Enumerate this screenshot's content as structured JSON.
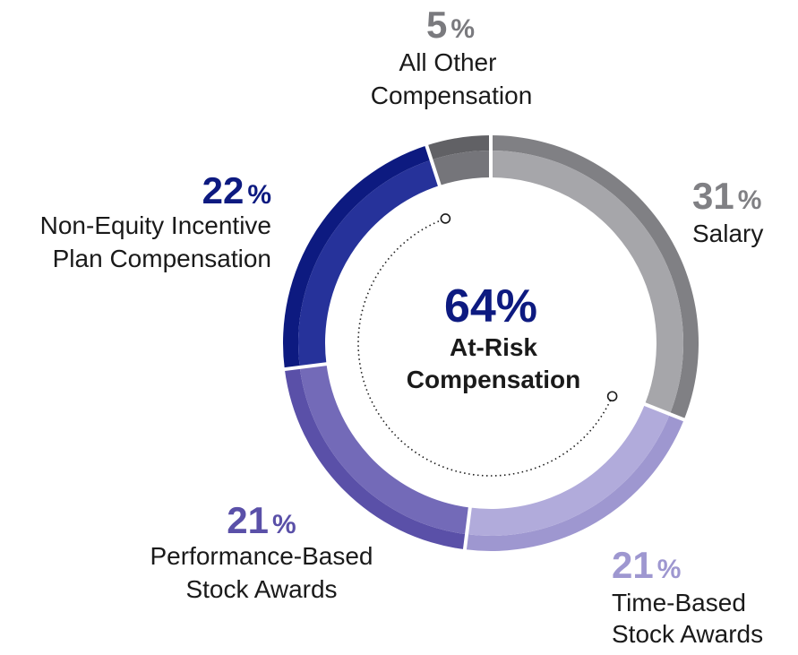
{
  "chart_data": {
    "type": "pie",
    "variant": "donut",
    "segments": [
      {
        "name": "Salary",
        "value": 31,
        "pct_text": "31",
        "pct_symbol": "%",
        "label_lines": [
          "Salary"
        ],
        "color_outer": "#808084",
        "color_inner": "#a6a6aa",
        "label_color": "#808084"
      },
      {
        "name": "Time-Based Stock Awards",
        "value": 21,
        "pct_text": "21",
        "pct_symbol": "%",
        "label_lines": [
          "Time-Based",
          "Stock Awards"
        ],
        "color_outer": "#9e97d0",
        "color_inner": "#b1abdb",
        "label_color": "#9e97d0"
      },
      {
        "name": "Performance-Based Stock Awards",
        "value": 21,
        "pct_text": "21",
        "pct_symbol": "%",
        "label_lines": [
          "Performance-Based",
          "Stock Awards"
        ],
        "color_outer": "#5a50a8",
        "color_inner": "#736ab8",
        "label_color": "#5a50a8"
      },
      {
        "name": "Non-Equity Incentive Plan Compensation",
        "value": 22,
        "pct_text": "22",
        "pct_symbol": "%",
        "label_lines": [
          "Non-Equity Incentive",
          "Plan Compensation"
        ],
        "color_outer": "#0d1a80",
        "color_inner": "#26329a",
        "label_color": "#0d1a80"
      },
      {
        "name": "All Other Compensation",
        "value": 5,
        "pct_text": "5",
        "pct_symbol": "%",
        "label_lines": [
          "All Other",
          "Compensation"
        ],
        "color_outer": "#616165",
        "color_inner": "#75757a",
        "label_color": "#7a7a7e"
      }
    ],
    "center": {
      "value": "64%",
      "label_lines": [
        "At-Risk",
        "Compensation"
      ],
      "value_color": "#0d1a80"
    },
    "at_risk_arc": {
      "description": "dotted arc spanning at-risk segments",
      "from_segment": "Time-Based Stock Awards",
      "to_segment": "Non-Equity Incentive Plan Compensation"
    }
  }
}
